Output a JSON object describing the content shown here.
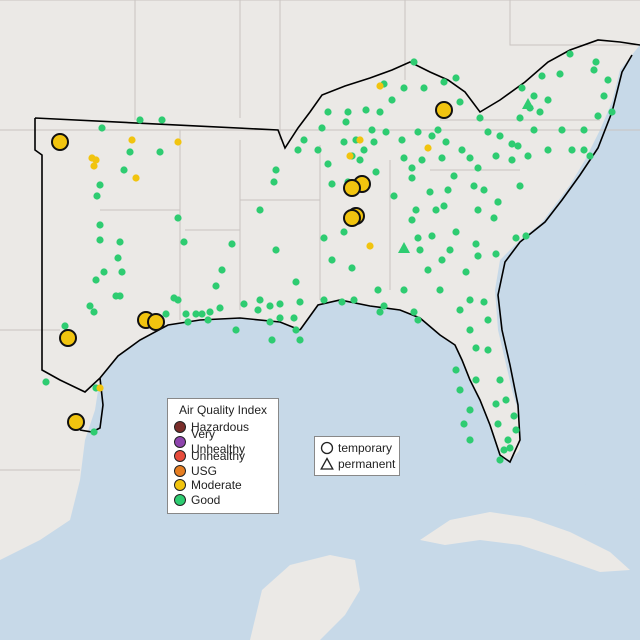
{
  "legend": {
    "title": "Air Quality Index",
    "categories": [
      {
        "label": "Hazardous",
        "color": "#7a2e2a"
      },
      {
        "label": "Very Unhealthy",
        "color": "#8e44ad"
      },
      {
        "label": "Unhealthy",
        "color": "#e74c3c"
      },
      {
        "label": "USG",
        "color": "#e67e22"
      },
      {
        "label": "Moderate",
        "color": "#f1c40f"
      },
      {
        "label": "Good",
        "color": "#2ecc71"
      }
    ]
  },
  "shape_legend": {
    "temporary": "temporary",
    "permanent": "permanent"
  },
  "colors": {
    "water": "#c7d9e8",
    "land": "#ebe9e6",
    "region_border": "#000000",
    "good": "#2ecc71",
    "moderate": "#f1c40f"
  }
}
